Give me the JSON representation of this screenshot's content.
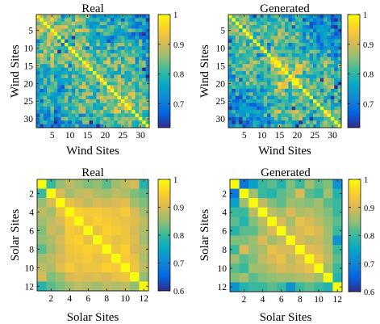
{
  "chart_data": [
    {
      "type": "heatmap",
      "title": "Real",
      "xlabel": "Wind Sites",
      "ylabel": "Wind Sites",
      "n": 32,
      "x_ticks": [
        "5",
        "10",
        "15",
        "20",
        "25",
        "30"
      ],
      "y_ticks": [
        "5",
        "10",
        "15",
        "20",
        "25",
        "30"
      ],
      "colorbar": {
        "ticks": [
          "1",
          "0.9",
          "0.8",
          "0.7"
        ],
        "range": [
          0.62,
          1.0
        ]
      },
      "value_range": [
        0.62,
        1.0
      ],
      "seed": 11
    },
    {
      "type": "heatmap",
      "title": "Generated",
      "xlabel": "Wind Sites",
      "ylabel": "Wind Sites",
      "n": 32,
      "x_ticks": [
        "5",
        "10",
        "15",
        "20",
        "25",
        "30"
      ],
      "y_ticks": [
        "5",
        "10",
        "15",
        "20",
        "25",
        "30"
      ],
      "colorbar": {
        "ticks": [
          "1",
          "0.9",
          "0.8",
          "0.7"
        ],
        "range": [
          0.62,
          1.0
        ]
      },
      "value_range": [
        0.62,
        1.0
      ],
      "seed": 29
    },
    {
      "type": "heatmap",
      "title": "Real",
      "xlabel": "Solar Sites",
      "ylabel": "Solar Sites",
      "n": 12,
      "x_ticks": [
        "2",
        "4",
        "6",
        "8",
        "10",
        "12"
      ],
      "y_ticks": [
        "2",
        "4",
        "6",
        "8",
        "10",
        "12"
      ],
      "colorbar": {
        "ticks": [
          "1",
          "0.9",
          "0.8",
          "0.7",
          "0.6"
        ],
        "range": [
          0.6,
          1.0
        ]
      },
      "values": [
        [
          1.0,
          0.8,
          0.85,
          0.88,
          0.86,
          0.84,
          0.85,
          0.82,
          0.86,
          0.88,
          0.9,
          0.78
        ],
        [
          0.8,
          1.0,
          0.9,
          0.86,
          0.88,
          0.89,
          0.87,
          0.86,
          0.88,
          0.87,
          0.84,
          0.82
        ],
        [
          0.85,
          0.9,
          1.0,
          0.92,
          0.9,
          0.88,
          0.9,
          0.89,
          0.9,
          0.91,
          0.86,
          0.84
        ],
        [
          0.88,
          0.86,
          0.92,
          1.0,
          0.95,
          0.94,
          0.94,
          0.93,
          0.92,
          0.94,
          0.9,
          0.86
        ],
        [
          0.86,
          0.88,
          0.9,
          0.95,
          1.0,
          0.93,
          0.95,
          0.94,
          0.93,
          0.92,
          0.91,
          0.88
        ],
        [
          0.84,
          0.89,
          0.88,
          0.94,
          0.93,
          1.0,
          0.92,
          0.95,
          0.94,
          0.93,
          0.9,
          0.87
        ],
        [
          0.85,
          0.87,
          0.9,
          0.94,
          0.95,
          0.92,
          1.0,
          0.94,
          0.92,
          0.93,
          0.91,
          0.86
        ],
        [
          0.82,
          0.86,
          0.89,
          0.93,
          0.94,
          0.95,
          0.94,
          1.0,
          0.93,
          0.95,
          0.9,
          0.88
        ],
        [
          0.86,
          0.88,
          0.9,
          0.92,
          0.93,
          0.94,
          0.92,
          0.93,
          1.0,
          0.94,
          0.92,
          0.87
        ],
        [
          0.88,
          0.87,
          0.91,
          0.94,
          0.92,
          0.93,
          0.93,
          0.95,
          0.94,
          1.0,
          0.93,
          0.88
        ],
        [
          0.9,
          0.84,
          0.86,
          0.9,
          0.91,
          0.9,
          0.91,
          0.9,
          0.92,
          0.93,
          1.0,
          0.85
        ],
        [
          0.78,
          0.82,
          0.84,
          0.86,
          0.88,
          0.87,
          0.86,
          0.88,
          0.87,
          0.88,
          0.85,
          1.0
        ]
      ],
      "value_range": [
        0.6,
        1.0
      ]
    },
    {
      "type": "heatmap",
      "title": "Generated",
      "xlabel": "Solar Sites",
      "ylabel": "Solar Sites",
      "n": 12,
      "x_ticks": [
        "2",
        "4",
        "6",
        "8",
        "10",
        "12"
      ],
      "y_ticks": [
        "2",
        "4",
        "6",
        "8",
        "10",
        "12"
      ],
      "colorbar": {
        "ticks": [
          "1",
          "0.9",
          "0.8",
          "0.7",
          "0.6"
        ],
        "range": [
          0.6,
          1.0
        ]
      },
      "values": [
        [
          1.0,
          0.68,
          0.74,
          0.8,
          0.82,
          0.78,
          0.84,
          0.8,
          0.86,
          0.82,
          0.84,
          0.72
        ],
        [
          0.68,
          1.0,
          0.86,
          0.8,
          0.78,
          0.82,
          0.84,
          0.9,
          0.82,
          0.8,
          0.86,
          0.78
        ],
        [
          0.74,
          0.86,
          1.0,
          0.88,
          0.84,
          0.82,
          0.86,
          0.85,
          0.84,
          0.86,
          0.82,
          0.8
        ],
        [
          0.8,
          0.8,
          0.88,
          1.0,
          0.88,
          0.86,
          0.9,
          0.87,
          0.88,
          0.86,
          0.84,
          0.8
        ],
        [
          0.82,
          0.78,
          0.84,
          0.88,
          1.0,
          0.9,
          0.86,
          0.92,
          0.9,
          0.88,
          0.85,
          0.82
        ],
        [
          0.78,
          0.82,
          0.82,
          0.86,
          0.9,
          1.0,
          0.88,
          0.9,
          0.92,
          0.9,
          0.86,
          0.8
        ],
        [
          0.84,
          0.84,
          0.86,
          0.9,
          0.86,
          0.88,
          1.0,
          0.9,
          0.88,
          0.89,
          0.86,
          0.72
        ],
        [
          0.8,
          0.9,
          0.85,
          0.87,
          0.92,
          0.9,
          0.9,
          1.0,
          0.91,
          0.9,
          0.87,
          0.8
        ],
        [
          0.86,
          0.82,
          0.84,
          0.88,
          0.9,
          0.92,
          0.88,
          0.91,
          1.0,
          0.92,
          0.88,
          0.82
        ],
        [
          0.82,
          0.8,
          0.86,
          0.86,
          0.88,
          0.9,
          0.89,
          0.9,
          0.92,
          1.0,
          0.86,
          0.8
        ],
        [
          0.84,
          0.86,
          0.82,
          0.84,
          0.85,
          0.86,
          0.86,
          0.87,
          0.88,
          0.86,
          1.0,
          0.78
        ],
        [
          0.72,
          0.78,
          0.8,
          0.8,
          0.82,
          0.8,
          0.72,
          0.8,
          0.82,
          0.8,
          0.78,
          1.0
        ]
      ],
      "value_range": [
        0.6,
        1.0
      ]
    }
  ]
}
